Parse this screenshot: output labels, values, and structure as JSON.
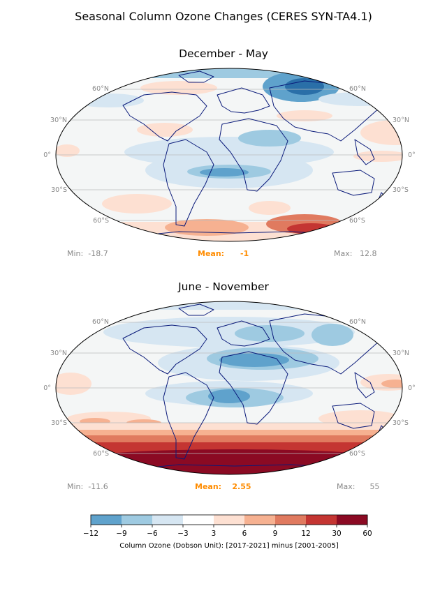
{
  "figure": {
    "title": "Seasonal Column Ozone Changes  (CERES SYN-TA4.1)"
  },
  "panels": [
    {
      "title": "December - May",
      "stats": {
        "min_label": "Min:",
        "min_value": "-18.7",
        "mean_label": "Mean:",
        "mean_value": "-1",
        "max_label": "Max:",
        "max_value": "12.8"
      }
    },
    {
      "title": "June - November",
      "stats": {
        "min_label": "Min:",
        "min_value": "-11.6",
        "mean_label": "Mean:",
        "mean_value": "2.55",
        "max_label": "Max:",
        "max_value": "55"
      }
    }
  ],
  "lat_labels": {
    "left": [
      "60°N",
      "30°N",
      "0°",
      "30°S",
      "60°S"
    ],
    "right": [
      "60°N",
      "30°N",
      "0°",
      "30°S",
      "60°S"
    ]
  },
  "colorbar": {
    "label": "Column Ozone (Dobson Unit): [2017-2021] minus [2001-2005]",
    "ticks": [
      "−12",
      "−9",
      "−6",
      "−3",
      "3",
      "6",
      "9",
      "12",
      "30",
      "60"
    ],
    "colors": [
      "#5fa2cc",
      "#9ecae1",
      "#d6e6f2",
      "#ffffff",
      "#fde0d2",
      "#f6b191",
      "#e07a5f",
      "#c43532",
      "#8b0a23"
    ]
  },
  "palette": {
    "ocean": "#f4f6f6",
    "coast": "#0a1a7a",
    "grid": "#bbbbbb",
    "mean": "#ff8c00"
  }
}
